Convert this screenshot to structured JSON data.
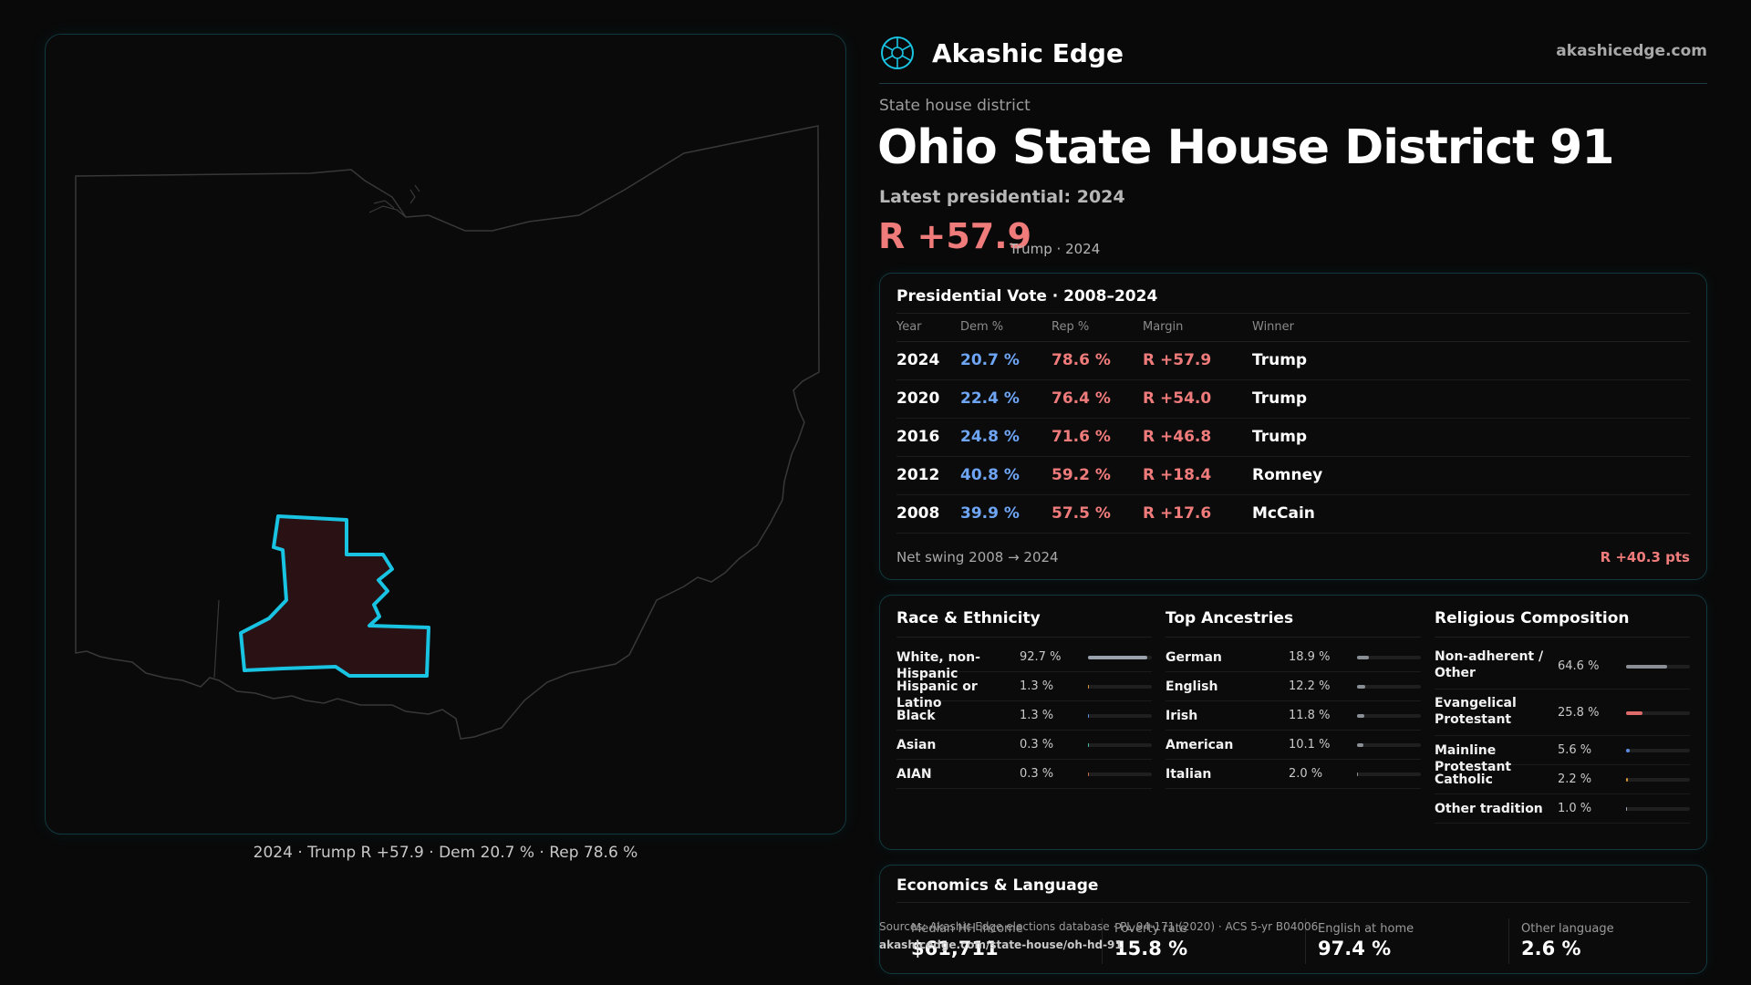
{
  "brand": {
    "name": "Akashic Edge",
    "url": "akashicedge.com"
  },
  "header": {
    "eyebrow": "State house district",
    "title": "Ohio State House District 91",
    "latest": "Latest presidential: 2024",
    "margin": "R +57.9",
    "margin_sub": "Trump · 2024"
  },
  "map": {
    "caption": "2024 · Trump R +57.9 · Dem 20.7 % · Rep 78.6 %",
    "colors": {
      "outline": "#3a3a3a",
      "district_stroke": "#19c3e2",
      "district_fill": "#2a1114"
    }
  },
  "presidential": {
    "title": "Presidential Vote · 2008–2024",
    "headers": {
      "year": "Year",
      "dem": "Dem %",
      "rep": "Rep %",
      "margin": "Margin",
      "winner": "Winner"
    },
    "rows": [
      {
        "year": "2024",
        "dem": "20.7 %",
        "rep": "78.6 %",
        "margin": "R +57.9",
        "winner": "Trump"
      },
      {
        "year": "2020",
        "dem": "22.4 %",
        "rep": "76.4 %",
        "margin": "R +54.0",
        "winner": "Trump"
      },
      {
        "year": "2016",
        "dem": "24.8 %",
        "rep": "71.6 %",
        "margin": "R +46.8",
        "winner": "Trump"
      },
      {
        "year": "2012",
        "dem": "40.8 %",
        "rep": "59.2 %",
        "margin": "R +18.4",
        "winner": "Romney"
      },
      {
        "year": "2008",
        "dem": "39.9 %",
        "rep": "57.5 %",
        "margin": "R +17.6",
        "winner": "McCain"
      }
    ],
    "swing_label": "Net swing 2008 → 2024",
    "swing_value": "R +40.3 pts"
  },
  "demographics": [
    {
      "title": "Race & Ethnicity",
      "rows": [
        {
          "label": "White, non-Hispanic",
          "value": "92.7 %",
          "pct": 92.7,
          "color": "#9aa3ad"
        },
        {
          "label": "Hispanic or Latino",
          "value": "1.3 %",
          "pct": 1.3,
          "color": "#d8922f"
        },
        {
          "label": "Black",
          "value": "1.3 %",
          "pct": 1.3,
          "color": "#5b8de0"
        },
        {
          "label": "Asian",
          "value": "0.3 %",
          "pct": 0.3,
          "color": "#3bbfa8"
        },
        {
          "label": "AIAN",
          "value": "0.3 %",
          "pct": 0.3,
          "color": "#c76a4a"
        }
      ]
    },
    {
      "title": "Top Ancestries",
      "rows": [
        {
          "label": "German",
          "value": "18.9 %",
          "pct": 18.9,
          "color": "#8a8f96"
        },
        {
          "label": "English",
          "value": "12.2 %",
          "pct": 12.2,
          "color": "#8a8f96"
        },
        {
          "label": "Irish",
          "value": "11.8 %",
          "pct": 11.8,
          "color": "#8a8f96"
        },
        {
          "label": "American",
          "value": "10.1 %",
          "pct": 10.1,
          "color": "#8a8f96"
        },
        {
          "label": "Italian",
          "value": "2.0 %",
          "pct": 2.0,
          "color": "#8a8f96"
        }
      ]
    },
    {
      "title": "Religious Composition",
      "rows": [
        {
          "label": "Non-adherent / Other",
          "value": "64.6 %",
          "pct": 64.6,
          "color": "#8a8f96"
        },
        {
          "label": "Evangelical Protestant",
          "value": "25.8 %",
          "pct": 25.8,
          "color": "#e06b6b"
        },
        {
          "label": "Mainline Protestant",
          "value": "5.6 %",
          "pct": 5.6,
          "color": "#5b8de0"
        },
        {
          "label": "Catholic",
          "value": "2.2 %",
          "pct": 2.2,
          "color": "#d8922f"
        },
        {
          "label": "Other tradition",
          "value": "1.0 %",
          "pct": 1.0,
          "color": "#9aa3ad"
        }
      ]
    }
  ],
  "economics": {
    "title": "Economics & Language",
    "stats": [
      {
        "label": "Median HH income",
        "value": "$61,711"
      },
      {
        "label": "Poverty rate",
        "value": "15.8 %"
      },
      {
        "label": "English at home",
        "value": "97.4 %"
      },
      {
        "label": "Other language",
        "value": "2.6 %"
      }
    ]
  },
  "sources": {
    "text": "Sources: Akashic Edge elections database · PL 94-171 (2020) · ACS 5-yr B04006",
    "url": "akashicedge.com/state-house/oh-hd-91"
  }
}
